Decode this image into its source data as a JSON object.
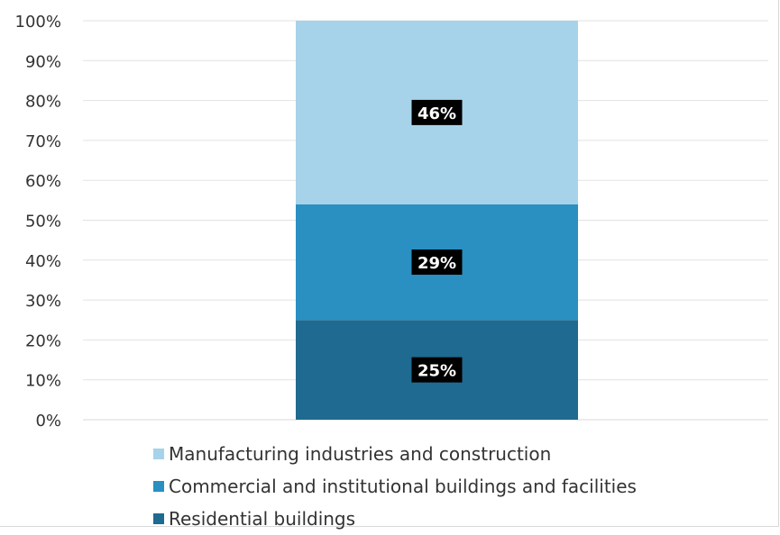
{
  "chart_data": {
    "type": "bar",
    "stacked": true,
    "percent_axis": true,
    "title": "",
    "xlabel": "",
    "ylabel": "",
    "ylim": [
      0,
      100
    ],
    "y_ticks": [
      "0%",
      "10%",
      "20%",
      "30%",
      "40%",
      "50%",
      "60%",
      "70%",
      "80%",
      "90%",
      "100%"
    ],
    "grid": true,
    "legend_position": "bottom",
    "categories": [
      ""
    ],
    "series": [
      {
        "name": "Residential buildings",
        "values": [
          25
        ],
        "label": "25%",
        "color": "#1f6a90"
      },
      {
        "name": "Commercial and institutional buildings and facilities",
        "values": [
          29
        ],
        "label": "29%",
        "color": "#2a8fc1"
      },
      {
        "name": "Manufacturing industries and construction",
        "values": [
          46
        ],
        "label": "46%",
        "color": "#a6d3ea"
      }
    ],
    "legend_order": [
      "Manufacturing industries and construction",
      "Commercial and institutional buildings and facilities",
      "Residential buildings"
    ]
  }
}
